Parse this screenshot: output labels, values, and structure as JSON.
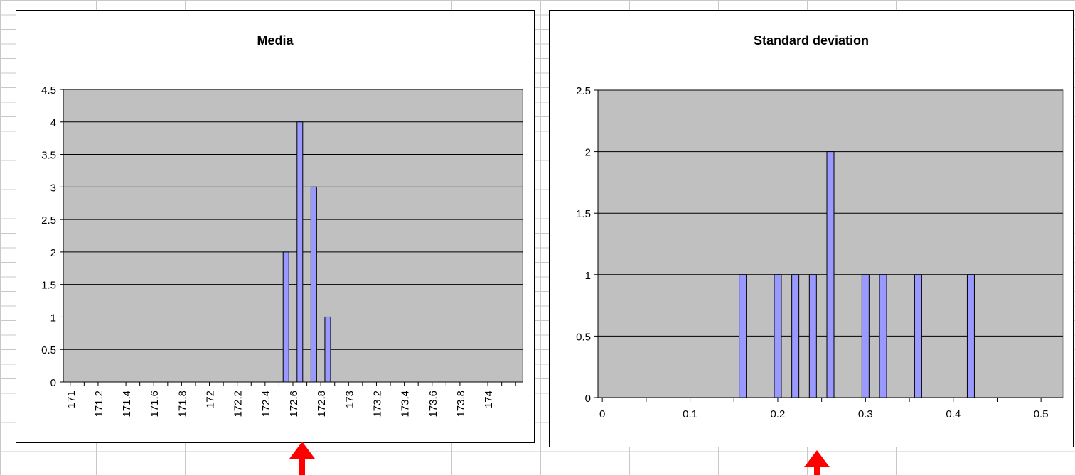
{
  "colors": {
    "plot_area": "#c0c0c0",
    "bar_fill": "#9999ff",
    "bar_stroke": "#000000",
    "gridline": "#000000",
    "sheet_grid": "#c8c8c8",
    "arrow": "#ff0000"
  },
  "chart_data": [
    {
      "type": "bar",
      "title": "Media",
      "xlabel": "",
      "ylabel": "",
      "x_ticks": [
        "171",
        "171.2",
        "171.4",
        "171.6",
        "171.8",
        "172",
        "172.2",
        "172.4",
        "172.6",
        "172.8",
        "173",
        "173.2",
        "173.4",
        "173.6",
        "173.8",
        "174"
      ],
      "xlim": [
        170.95,
        174.25
      ],
      "ylim": [
        0,
        4.5
      ],
      "y_ticks": [
        "0",
        "0.5",
        "1",
        "1.5",
        "2",
        "2.5",
        "3",
        "3.5",
        "4",
        "4.5"
      ],
      "points": [
        {
          "x": 172.55,
          "value": 2
        },
        {
          "x": 172.65,
          "value": 4
        },
        {
          "x": 172.75,
          "value": 3
        },
        {
          "x": 172.85,
          "value": 1
        }
      ],
      "grid": true,
      "legend": "none"
    },
    {
      "type": "bar",
      "title": "Standard deviation",
      "xlabel": "",
      "ylabel": "",
      "x_ticks": [
        "0",
        "0.1",
        "0.2",
        "0.3",
        "0.4",
        "0.5"
      ],
      "xlim": [
        -0.005,
        0.525
      ],
      "ylim": [
        0,
        2.5
      ],
      "y_ticks": [
        "0",
        "0.5",
        "1",
        "1.5",
        "2",
        "2.5"
      ],
      "points": [
        {
          "x": 0.16,
          "value": 1
        },
        {
          "x": 0.2,
          "value": 1
        },
        {
          "x": 0.22,
          "value": 1
        },
        {
          "x": 0.24,
          "value": 1
        },
        {
          "x": 0.26,
          "value": 2
        },
        {
          "x": 0.3,
          "value": 1
        },
        {
          "x": 0.32,
          "value": 1
        },
        {
          "x": 0.36,
          "value": 1
        },
        {
          "x": 0.42,
          "value": 1
        }
      ],
      "grid": true,
      "legend": "none"
    }
  ]
}
